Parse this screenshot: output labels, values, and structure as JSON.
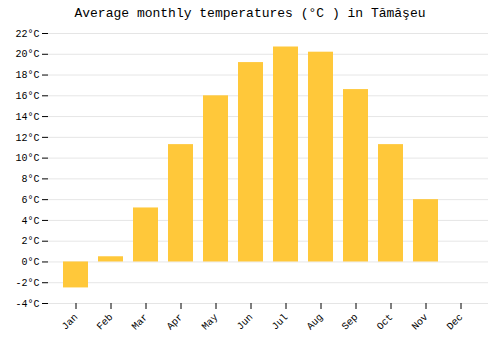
{
  "chart_data": {
    "type": "bar",
    "title": "Average monthly temperatures (°C ) in Tămăşeu",
    "categories": [
      "Jan",
      "Feb",
      "Mar",
      "Apr",
      "May",
      "Jun",
      "Jul",
      "Aug",
      "Sep",
      "Oct",
      "Nov",
      "Dec"
    ],
    "values": [
      -2.5,
      0.5,
      5.2,
      11.3,
      16.0,
      19.2,
      20.7,
      20.2,
      16.6,
      11.3,
      6.0,
      0.0
    ],
    "color": "#FFC83A",
    "ylim": [
      -4,
      22
    ],
    "yticks": [
      {
        "value": -4,
        "label": "-4°C"
      },
      {
        "value": -2,
        "label": "-2°C"
      },
      {
        "value": 0,
        "label": "0°C"
      },
      {
        "value": 2,
        "label": "2°C"
      },
      {
        "value": 4,
        "label": "4°C"
      },
      {
        "value": 6,
        "label": "6°C"
      },
      {
        "value": 8,
        "label": "8°C"
      },
      {
        "value": 10,
        "label": "10°C"
      },
      {
        "value": 12,
        "label": "12°C"
      },
      {
        "value": 14,
        "label": "14°C"
      },
      {
        "value": 16,
        "label": "16°C"
      },
      {
        "value": 18,
        "label": "18°C"
      },
      {
        "value": 20,
        "label": "20°C"
      },
      {
        "value": 22,
        "label": "22°C"
      }
    ],
    "grid": true
  }
}
